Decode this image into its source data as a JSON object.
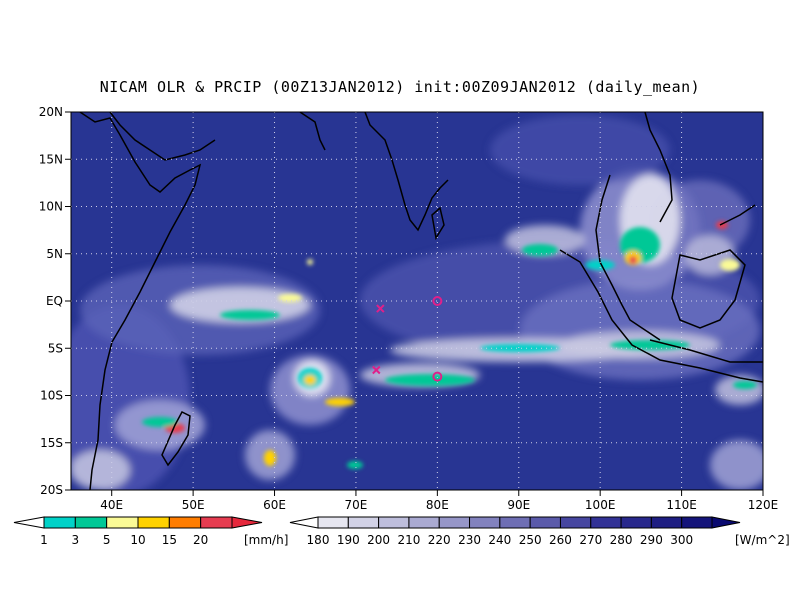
{
  "title": "NICAM OLR & PRCIP (00Z13JAN2012) init:00Z09JAN2012 (daily_mean)",
  "map": {
    "lon_range": [
      35,
      120
    ],
    "lat_range": [
      -20,
      20
    ],
    "lat_ticks": [
      {
        "value": 20,
        "label": "20N"
      },
      {
        "value": 15,
        "label": "15N"
      },
      {
        "value": 10,
        "label": "10N"
      },
      {
        "value": 5,
        "label": "5N"
      },
      {
        "value": 0,
        "label": "EQ"
      },
      {
        "value": -5,
        "label": "5S"
      },
      {
        "value": -10,
        "label": "10S"
      },
      {
        "value": -15,
        "label": "15S"
      },
      {
        "value": -20,
        "label": "20S"
      }
    ],
    "lon_ticks": [
      {
        "value": 40,
        "label": "40E"
      },
      {
        "value": 50,
        "label": "50E"
      },
      {
        "value": 60,
        "label": "60E"
      },
      {
        "value": 70,
        "label": "70E"
      },
      {
        "value": 80,
        "label": "80E"
      },
      {
        "value": 90,
        "label": "90E"
      },
      {
        "value": 100,
        "label": "100E"
      },
      {
        "value": 110,
        "label": "110E"
      },
      {
        "value": 120,
        "label": "120E"
      }
    ],
    "grid": true,
    "background_color": "#283593",
    "markers": [
      {
        "symbol": "x",
        "lon": 73,
        "lat": -0.8,
        "color": "#e0208a"
      },
      {
        "symbol": "o",
        "lon": 80,
        "lat": 0,
        "color": "#e0208a"
      },
      {
        "symbol": "x",
        "lon": 72.5,
        "lat": -7.3,
        "color": "#e0208a"
      },
      {
        "symbol": "o",
        "lon": 80,
        "lat": -8,
        "color": "#e0208a"
      }
    ]
  },
  "precip_legend": {
    "unit": "[mm/h]",
    "labels": [
      "1",
      "3",
      "5",
      "10",
      "15",
      "20"
    ],
    "colors": [
      "#00d2c8",
      "#00c896",
      "#fafa96",
      "#ffd200",
      "#ff7d00",
      "#e63c50"
    ],
    "under_color": "#ffffff",
    "over_color": "#e6283c"
  },
  "olr_legend": {
    "unit": "[W/m^2]",
    "labels": [
      "180",
      "190",
      "200",
      "210",
      "220",
      "230",
      "240",
      "250",
      "260",
      "270",
      "280",
      "290",
      "300"
    ],
    "colors": [
      "#e6e6f0",
      "#d2d2e6",
      "#bebedc",
      "#aaaad2",
      "#9696c8",
      "#8282be",
      "#6e6eb4",
      "#5a5aaa",
      "#4646a0",
      "#323296",
      "#28288c",
      "#1e1e82",
      "#14147a"
    ],
    "under_color": "#ffffff",
    "over_color": "#0a0a70"
  }
}
